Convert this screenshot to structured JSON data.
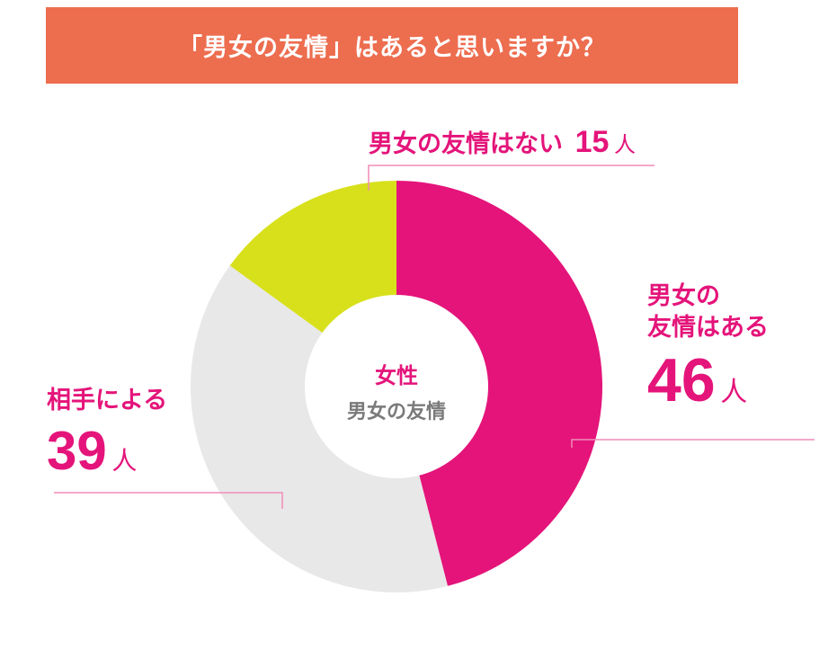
{
  "title": "「男女の友情」はあると思いますか？",
  "center": {
    "title": "女性",
    "subtitle": "男女の友情"
  },
  "labels": {
    "aru": {
      "name_line1": "男女の",
      "name_line2": "友情はある",
      "value": "46",
      "unit": "人"
    },
    "yoru": {
      "name": "相手による",
      "value": "39",
      "unit": "人"
    },
    "nai": {
      "name": "男女の友情はない",
      "value": "15",
      "unit": "人"
    }
  },
  "colors": {
    "banner": "#ed6d4f",
    "aru": "#e4147a",
    "yoru": "#e8e8e8",
    "nai": "#d8e01b",
    "label": "#e4147a",
    "leader": "#f08cb8"
  },
  "chart_data": {
    "type": "pie",
    "donut": true,
    "title": "「男女の友情」はあると思いますか？",
    "center_label": "女性 男女の友情",
    "unit": "人",
    "slices": [
      {
        "label": "男女の友情はある",
        "value": 46,
        "color": "#e4147a"
      },
      {
        "label": "相手による",
        "value": 39,
        "color": "#e8e8e8"
      },
      {
        "label": "男女の友情はない",
        "value": 15,
        "color": "#d8e01b"
      }
    ]
  }
}
